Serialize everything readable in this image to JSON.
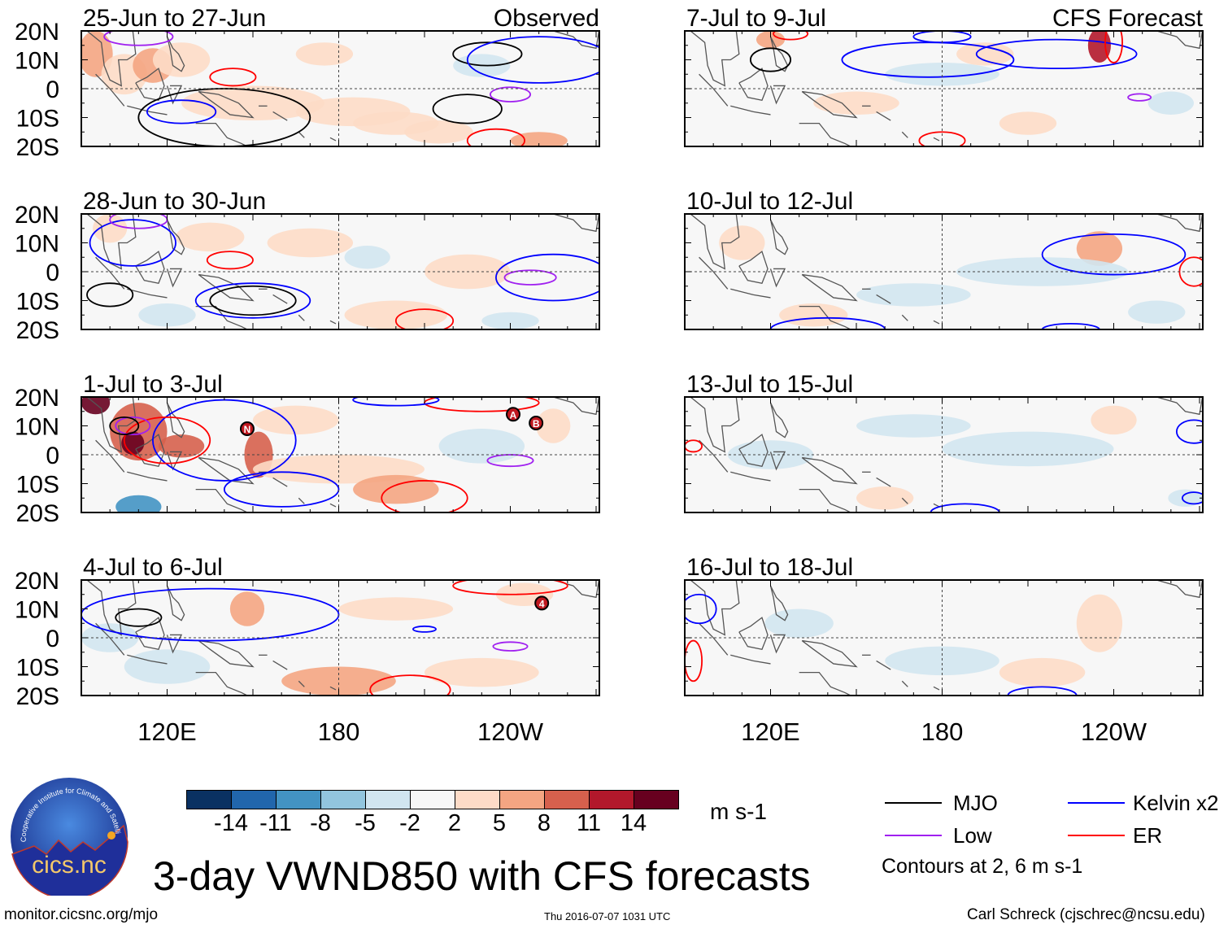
{
  "panels": [
    {
      "title": "25-Jun to 27-Jun",
      "tag": "Observed",
      "col": 0,
      "row": 0,
      "blobs": [
        [
          95,
          12,
          6,
          8,
          7
        ],
        [
          105,
          5,
          8,
          7,
          6
        ],
        [
          115,
          8,
          7,
          6,
          7
        ],
        [
          125,
          10,
          10,
          6,
          6
        ],
        [
          150,
          -5,
          25,
          6,
          6
        ],
        [
          185,
          -8,
          20,
          5,
          6
        ],
        [
          200,
          -12,
          15,
          4,
          6
        ],
        [
          215,
          -15,
          12,
          4,
          6
        ],
        [
          250,
          -18,
          10,
          3,
          7
        ],
        [
          230,
          8,
          10,
          4,
          4
        ],
        [
          175,
          12,
          10,
          4,
          6
        ]
      ],
      "contours": [
        [
          "ER",
          143,
          4,
          8,
          3
        ],
        [
          "MJO",
          140,
          -10,
          30,
          10
        ],
        [
          "MJO",
          232,
          12,
          12,
          4
        ],
        [
          "MJO",
          225,
          -7,
          12,
          5
        ],
        [
          "Low",
          240,
          -2,
          7,
          2.5
        ],
        [
          "Kelvin",
          250,
          10,
          25,
          8
        ],
        [
          "Kelvin",
          125,
          -8,
          12,
          4
        ],
        [
          "ER",
          235,
          -18,
          10,
          4
        ],
        [
          "Low",
          110,
          18,
          12,
          3
        ]
      ],
      "storms": []
    },
    {
      "title": "7-Jul to 9-Jul",
      "tag": "CFS Forecast",
      "col": 1,
      "row": 0,
      "blobs": [
        [
          235,
          15,
          4,
          6,
          9
        ],
        [
          120,
          17,
          5,
          3,
          7
        ],
        [
          150,
          -5,
          15,
          4,
          6
        ],
        [
          210,
          -12,
          10,
          4,
          6
        ],
        [
          180,
          5,
          20,
          4,
          4
        ],
        [
          260,
          -5,
          8,
          4,
          4
        ],
        [
          195,
          12,
          10,
          4,
          6
        ]
      ],
      "contours": [
        [
          "MJO",
          120,
          10,
          7,
          4
        ],
        [
          "Kelvin",
          175,
          10,
          30,
          6
        ],
        [
          "Kelvin",
          220,
          12,
          28,
          5
        ],
        [
          "Kelvin",
          180,
          18,
          10,
          2
        ],
        [
          "ER",
          240,
          16,
          3,
          7
        ],
        [
          "ER",
          180,
          -18,
          8,
          3
        ],
        [
          "Low",
          249,
          -3,
          4,
          1.2
        ],
        [
          "ER",
          127,
          19,
          6,
          2
        ]
      ],
      "storms": []
    },
    {
      "title": "28-Jun to 30-Jun",
      "tag": "",
      "col": 0,
      "row": 1,
      "blobs": [
        [
          100,
          15,
          6,
          5,
          6
        ],
        [
          135,
          12,
          12,
          5,
          6
        ],
        [
          170,
          10,
          15,
          5,
          6
        ],
        [
          225,
          0,
          15,
          6,
          6
        ],
        [
          200,
          -15,
          18,
          5,
          6
        ],
        [
          240,
          -17,
          10,
          3,
          4
        ],
        [
          190,
          5,
          8,
          4,
          4
        ],
        [
          120,
          -15,
          10,
          4,
          4
        ]
      ],
      "contours": [
        [
          "ER",
          142,
          4,
          8,
          3
        ],
        [
          "MJO",
          100,
          -8,
          8,
          4
        ],
        [
          "MJO",
          150,
          -10,
          15,
          5
        ],
        [
          "Kelvin",
          150,
          -10,
          20,
          6
        ],
        [
          "Kelvin",
          255,
          -2,
          20,
          8
        ],
        [
          "Low",
          247,
          -2,
          9,
          2.5
        ],
        [
          "ER",
          210,
          -17,
          10,
          4
        ],
        [
          "Kelvin",
          108,
          10,
          15,
          8
        ],
        [
          "Low",
          110,
          18,
          10,
          3
        ]
      ],
      "storms": []
    },
    {
      "title": "10-Jul to 12-Jul",
      "tag": "",
      "col": 1,
      "row": 1,
      "blobs": [
        [
          235,
          8,
          8,
          6,
          7
        ],
        [
          215,
          0,
          30,
          5,
          4
        ],
        [
          170,
          -8,
          20,
          4,
          4
        ],
        [
          110,
          10,
          8,
          6,
          6
        ],
        [
          135,
          -15,
          12,
          4,
          6
        ],
        [
          255,
          -14,
          10,
          4,
          4
        ]
      ],
      "contours": [
        [
          "Kelvin",
          240,
          6,
          25,
          7
        ],
        [
          "ER",
          268,
          0,
          5,
          5
        ],
        [
          "Kelvin",
          140,
          -20,
          20,
          4
        ],
        [
          "Kelvin",
          225,
          -20,
          10,
          2
        ]
      ],
      "storms": []
    },
    {
      "title": "1-Jul to 3-Jul",
      "tag": "",
      "col": 0,
      "row": 2,
      "blobs": [
        [
          95,
          18,
          5,
          4,
          10
        ],
        [
          110,
          8,
          10,
          10,
          8
        ],
        [
          108,
          4,
          4,
          4,
          10
        ],
        [
          125,
          3,
          8,
          4,
          8
        ],
        [
          152,
          0,
          5,
          8,
          8
        ],
        [
          165,
          12,
          15,
          5,
          6
        ],
        [
          180,
          -5,
          30,
          5,
          6
        ],
        [
          200,
          -12,
          15,
          5,
          7
        ],
        [
          110,
          -18,
          8,
          4,
          2
        ],
        [
          230,
          3,
          15,
          6,
          4
        ],
        [
          255,
          10,
          6,
          6,
          6
        ]
      ],
      "contours": [
        [
          "Kelvin",
          140,
          5,
          25,
          14
        ],
        [
          "ER",
          120,
          5,
          15,
          8
        ],
        [
          "Low",
          108,
          10,
          6,
          3
        ],
        [
          "MJO",
          105,
          10,
          5,
          3
        ],
        [
          "Low",
          240,
          -2,
          8,
          2
        ],
        [
          "ER",
          210,
          -15,
          15,
          6
        ],
        [
          "Kelvin",
          160,
          -12,
          20,
          6
        ],
        [
          "ER",
          230,
          18,
          20,
          3
        ],
        [
          "Kelvin",
          200,
          19,
          15,
          2
        ]
      ],
      "storms": [
        [
          "A",
          241,
          14
        ],
        [
          "B",
          249,
          11
        ],
        [
          "N",
          148,
          9
        ]
      ]
    },
    {
      "title": "13-Jul to 15-Jul",
      "tag": "",
      "col": 1,
      "row": 2,
      "blobs": [
        [
          120,
          0,
          15,
          5,
          4
        ],
        [
          210,
          2,
          30,
          6,
          4
        ],
        [
          170,
          10,
          20,
          4,
          4
        ],
        [
          240,
          12,
          8,
          5,
          6
        ],
        [
          160,
          -15,
          10,
          4,
          6
        ],
        [
          265,
          -15,
          6,
          3,
          4
        ]
      ],
      "contours": [
        [
          "ER",
          93,
          3,
          3,
          2
        ],
        [
          "Kelvin",
          268,
          8,
          6,
          4
        ],
        [
          "Kelvin",
          188,
          -20,
          12,
          3
        ],
        [
          "Kelvin",
          268,
          -15,
          4,
          2
        ]
      ],
      "storms": []
    },
    {
      "title": "4-Jul to 6-Jul",
      "tag": "",
      "col": 0,
      "row": 3,
      "blobs": [
        [
          148,
          10,
          6,
          6,
          7
        ],
        [
          100,
          0,
          10,
          5,
          4
        ],
        [
          180,
          -15,
          20,
          5,
          7
        ],
        [
          230,
          -12,
          20,
          5,
          6
        ],
        [
          200,
          10,
          20,
          4,
          6
        ],
        [
          245,
          15,
          10,
          4,
          6
        ],
        [
          120,
          -10,
          15,
          6,
          4
        ]
      ],
      "contours": [
        [
          "Kelvin",
          135,
          8,
          45,
          9
        ],
        [
          "MJO",
          110,
          7,
          8,
          3
        ],
        [
          "ER",
          205,
          -18,
          14,
          5
        ],
        [
          "Low",
          240,
          -3,
          6,
          1.5
        ],
        [
          "ER",
          240,
          18,
          20,
          3
        ],
        [
          "Kelvin",
          210,
          3,
          4,
          1
        ]
      ],
      "storms": [
        [
          "4",
          251,
          12
        ]
      ]
    },
    {
      "title": "16-Jul to 18-Jul",
      "tag": "",
      "col": 1,
      "row": 3,
      "blobs": [
        [
          235,
          5,
          8,
          10,
          6
        ],
        [
          180,
          -8,
          20,
          5,
          4
        ],
        [
          130,
          5,
          12,
          5,
          4
        ],
        [
          215,
          -12,
          15,
          5,
          6
        ]
      ],
      "contours": [
        [
          "Kelvin",
          95,
          10,
          6,
          5
        ],
        [
          "ER",
          93,
          -8,
          3,
          7
        ],
        [
          "Kelvin",
          215,
          -20,
          12,
          3
        ]
      ],
      "storms": []
    }
  ],
  "lat_labels": [
    "20N",
    "10N",
    "0",
    "10S",
    "20S"
  ],
  "lon_labels": [
    "120E",
    "180",
    "120W"
  ],
  "colorbar": {
    "labels": [
      "-14",
      "-11",
      "-8",
      "-5",
      "-2",
      "2",
      "5",
      "8",
      "11",
      "14"
    ],
    "colors": [
      "#0a3162",
      "#2166ac",
      "#4393c3",
      "#92c5de",
      "#d1e5f0",
      "#f7f7f7",
      "#fddbc7",
      "#f4a582",
      "#d6604d",
      "#b2182b",
      "#67001f"
    ],
    "units": "m s-1"
  },
  "legend": {
    "items": [
      {
        "label": "MJO",
        "color": "#000000"
      },
      {
        "label": "Kelvin x2",
        "color": "#0000ff"
      },
      {
        "label": "Low",
        "color": "#a020f0"
      },
      {
        "label": "ER",
        "color": "#ff0000"
      }
    ],
    "note": "Contours at 2, 6 m s-1"
  },
  "contour_colors": {
    "MJO": "#000000",
    "Kelvin": "#0000ff",
    "Low": "#a020f0",
    "ER": "#ff0000"
  },
  "title": "3-day VWND850 with CFS forecasts",
  "footer": {
    "url": "monitor.cicsnc.org/mjo",
    "timestamp": "Thu 2016-07-07 1031 UTC",
    "author": "Carl Schreck (cjschrec@ncsu.edu)"
  },
  "logo": {
    "text": "cics.nc",
    "ring": "Cooperative Institute for Climate and Satellites"
  }
}
